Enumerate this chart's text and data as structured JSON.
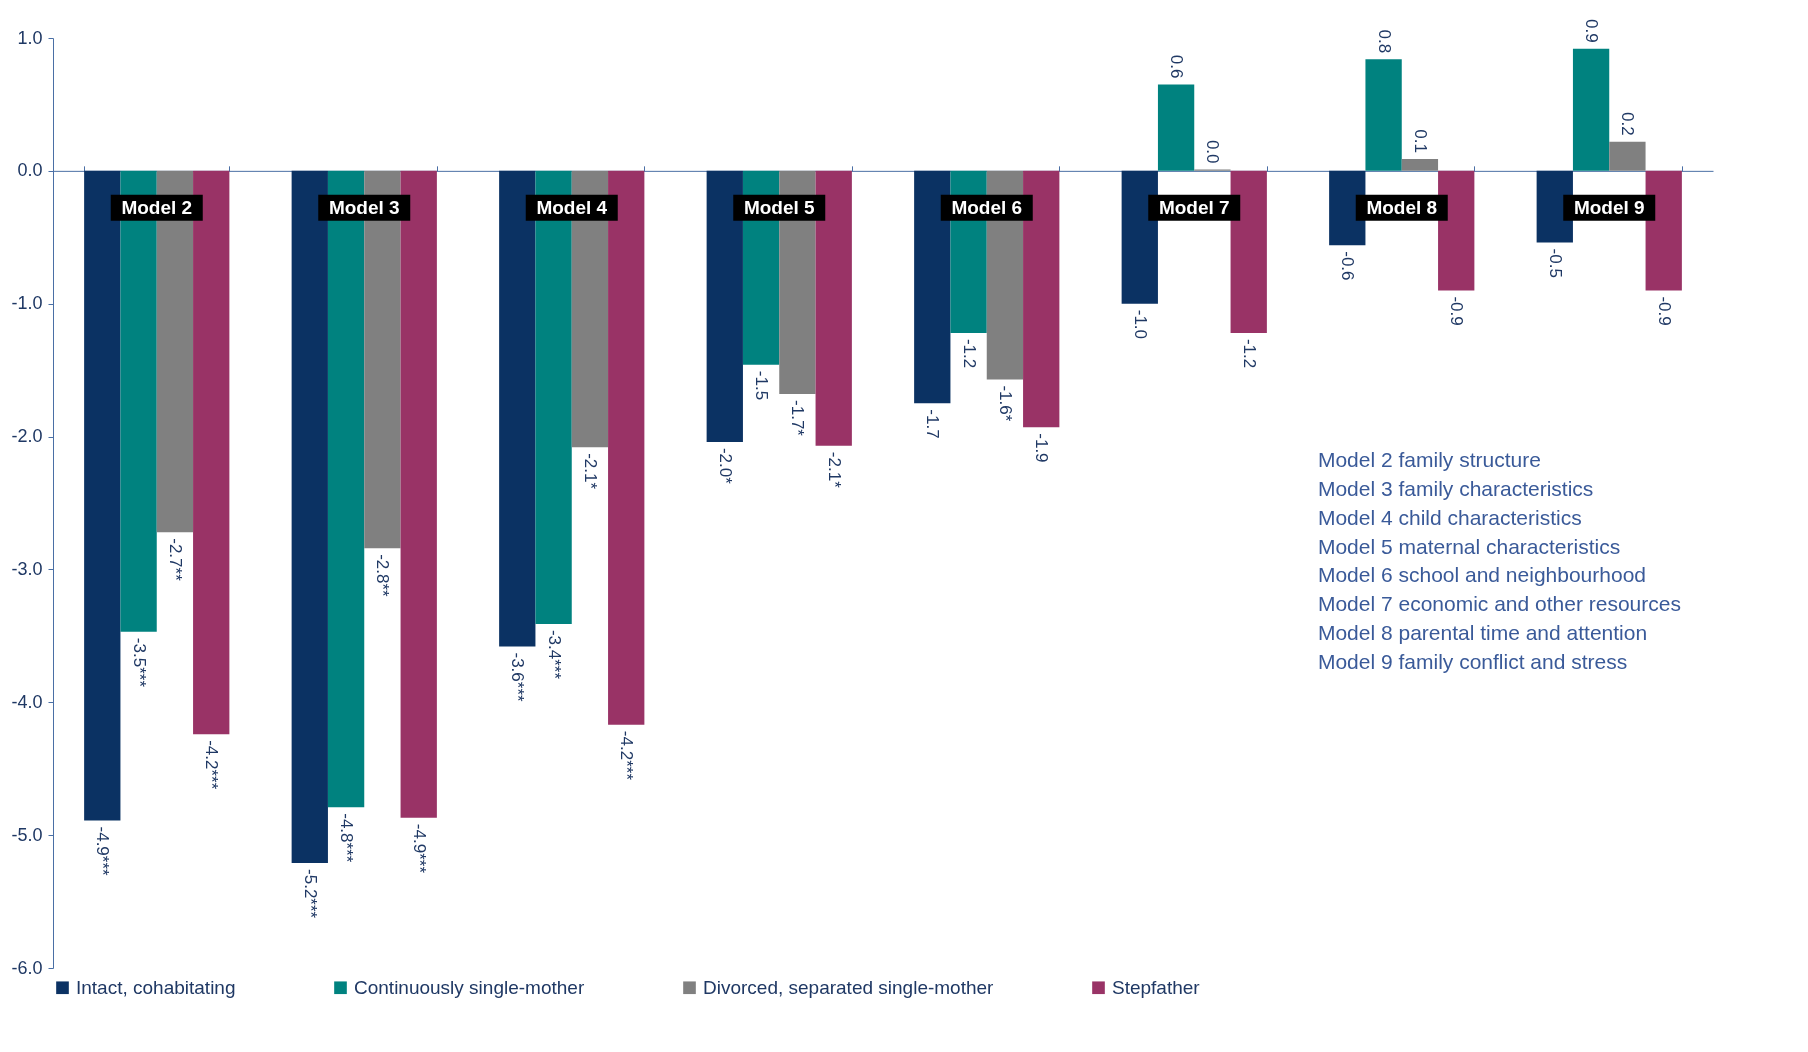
{
  "chart_data": {
    "type": "bar",
    "categories": [
      "Model 2",
      "Model 3",
      "Model 4",
      "Model 5",
      "Model 6",
      "Model 7",
      "Model 8",
      "Model 9"
    ],
    "series": [
      {
        "name": "Intact, cohabitating",
        "color": "#0b3263",
        "values": [
          -4.89,
          -5.21,
          -3.58,
          -2.04,
          -1.75,
          -1.0,
          -0.56,
          -0.54
        ],
        "value_labels": [
          "-4.9***",
          "-5.2***",
          "-3.6***",
          "-2.0*",
          "-1.7",
          "-1.0",
          "-0.6",
          "-0.5"
        ]
      },
      {
        "name": "Continuously single-mother",
        "color": "#00827f",
        "values": [
          -3.47,
          -4.79,
          -3.41,
          -1.46,
          -1.22,
          0.65,
          0.84,
          0.92
        ],
        "value_labels": [
          "-3.5***",
          "-4.8***",
          "-3.4***",
          "-1.5",
          "-1.2",
          "0.6",
          "0.8",
          "0.9"
        ]
      },
      {
        "name": "Divorced, separated single-mother",
        "color": "#808080",
        "values": [
          -2.72,
          -2.84,
          -2.08,
          -1.68,
          -1.57,
          0.01,
          0.09,
          0.22
        ],
        "value_labels": [
          "-2.7**",
          "-2.8**",
          "-2.1*",
          "-1.7*",
          "-1.6*",
          "0.0",
          "0.1",
          "0.2"
        ]
      },
      {
        "name": "Stepfather",
        "color": "#993366",
        "values": [
          -4.24,
          -4.87,
          -4.17,
          -2.07,
          -1.93,
          -1.22,
          -0.9,
          -0.9
        ],
        "value_labels": [
          "-4.2***",
          "-4.9***",
          "-4.2***",
          "-2.1*",
          "-1.9",
          "-1.2",
          "-0.9",
          "-0.9"
        ]
      }
    ],
    "ylim": [
      -6.0,
      1.0
    ],
    "yticks": [
      {
        "value": -6,
        "label": "-6.0"
      },
      {
        "value": -5,
        "label": "-5.0"
      },
      {
        "value": -4,
        "label": "-4.0"
      },
      {
        "value": -3,
        "label": "-3.0"
      },
      {
        "value": -2,
        "label": "-2.0"
      },
      {
        "value": -1,
        "label": "-1.0"
      },
      {
        "value": 0,
        "label": "0.0"
      },
      {
        "value": 1,
        "label": "1.0"
      }
    ],
    "grid": false,
    "legend": "bottom",
    "annotations": [
      "Model 2 family structure",
      "Model 3 family characteristics",
      "Model 4 child characteristics",
      "Model 5 maternal characteristics",
      "Model 6 school and neighbourhood",
      "Model 7 economic and other resources",
      "Model 8 parental time and attention",
      "Model 9 family conflict and stress"
    ]
  }
}
